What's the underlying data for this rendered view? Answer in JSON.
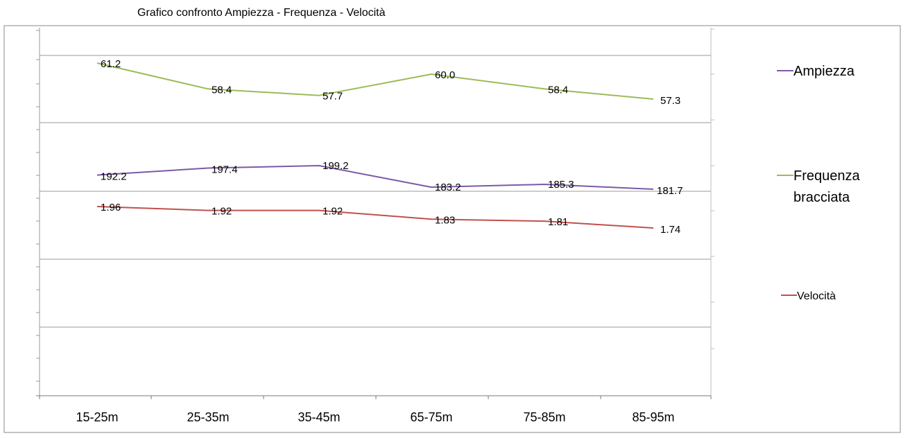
{
  "chart_data": {
    "type": "line",
    "title": "Grafico confronto    Ampiezza - Frequenza - Velocità",
    "categories": [
      "15-25m",
      "25-35m",
      "35-45m",
      "65-75m",
      "75-85m",
      "85-95m"
    ],
    "series": [
      {
        "name": "Ampiezza",
        "color": "#7a5aa6",
        "values": [
          192.2,
          197.4,
          199.2,
          183.2,
          185.3,
          181.7
        ],
        "labels": [
          "192.2",
          "197.4",
          "199.2",
          "183.2",
          "185.3",
          "181.7"
        ]
      },
      {
        "name": "Frequenza bracciata",
        "color": "#9bbb59",
        "values": [
          61.2,
          58.4,
          57.7,
          60.0,
          58.4,
          57.3
        ],
        "labels": [
          "61.2",
          "58.4",
          "57.7",
          "60.0",
          "58.4",
          "57.3"
        ]
      },
      {
        "name": "Velocità",
        "color": "#c0504d",
        "values": [
          1.96,
          1.92,
          1.92,
          1.83,
          1.81,
          1.74
        ],
        "labels": [
          "1.96",
          "1.92",
          "1.92",
          "1.83",
          "1.81",
          "1.74"
        ]
      }
    ],
    "legend_lines": [
      [
        "Ampiezza"
      ],
      [
        "Frequenza",
        "bracciata"
      ],
      [
        "Velocità"
      ]
    ],
    "legend_position": "right",
    "grid": true
  }
}
